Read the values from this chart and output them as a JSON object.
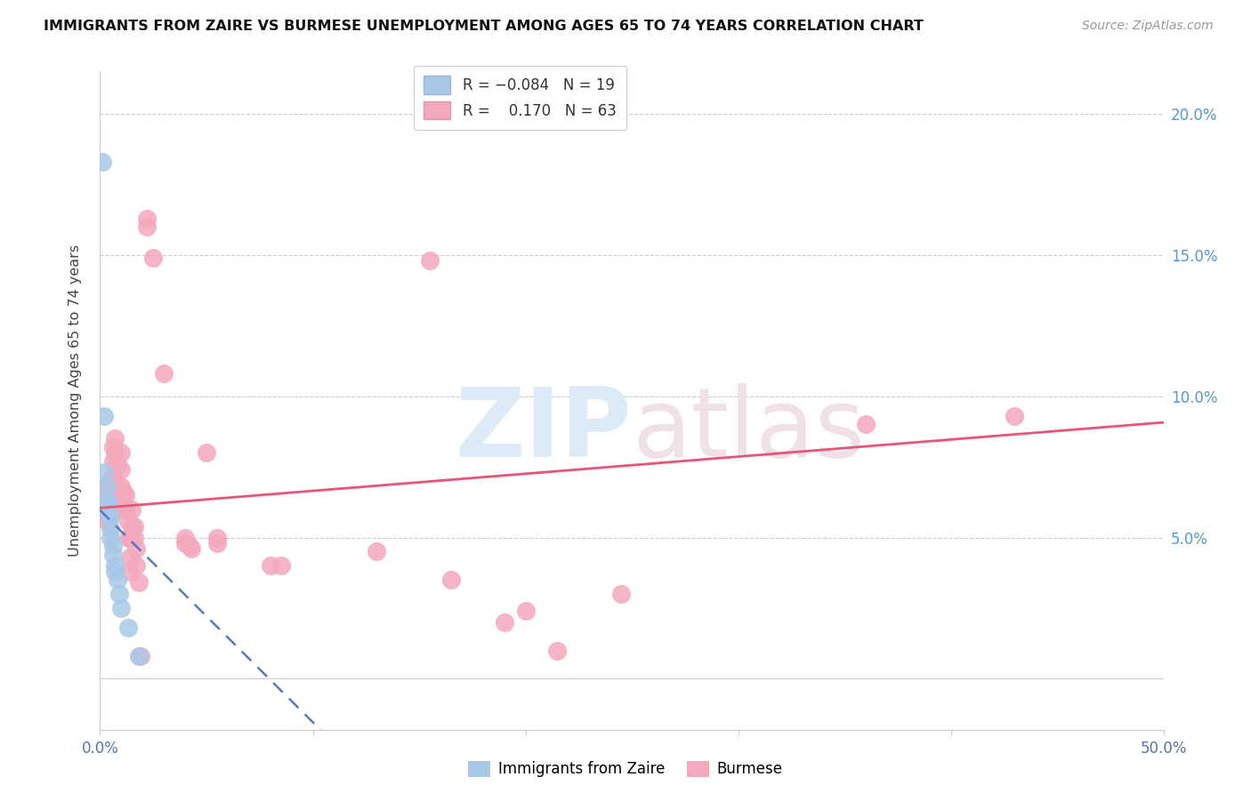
{
  "title": "IMMIGRANTS FROM ZAIRE VS BURMESE UNEMPLOYMENT AMONG AGES 65 TO 74 YEARS CORRELATION CHART",
  "source": "Source: ZipAtlas.com",
  "ylabel": "Unemployment Among Ages 65 to 74 years",
  "xlim": [
    0.0,
    0.5
  ],
  "ylim": [
    -0.018,
    0.215
  ],
  "zaire_color": "#a8c8e8",
  "burmese_color": "#f4a8bc",
  "zaire_line_color": "#5577cc",
  "burmese_line_color": "#e85575",
  "zaire_points": [
    [
      0.001,
      0.183
    ],
    [
      0.002,
      0.093
    ],
    [
      0.002,
      0.073
    ],
    [
      0.003,
      0.068
    ],
    [
      0.003,
      0.063
    ],
    [
      0.004,
      0.062
    ],
    [
      0.004,
      0.058
    ],
    [
      0.005,
      0.057
    ],
    [
      0.005,
      0.053
    ],
    [
      0.005,
      0.05
    ],
    [
      0.006,
      0.047
    ],
    [
      0.006,
      0.044
    ],
    [
      0.007,
      0.04
    ],
    [
      0.007,
      0.038
    ],
    [
      0.008,
      0.035
    ],
    [
      0.009,
      0.03
    ],
    [
      0.01,
      0.025
    ],
    [
      0.013,
      0.018
    ],
    [
      0.018,
      0.008
    ]
  ],
  "burmese_points": [
    [
      0.001,
      0.067
    ],
    [
      0.002,
      0.064
    ],
    [
      0.002,
      0.06
    ],
    [
      0.003,
      0.06
    ],
    [
      0.003,
      0.056
    ],
    [
      0.004,
      0.06
    ],
    [
      0.004,
      0.056
    ],
    [
      0.005,
      0.07
    ],
    [
      0.005,
      0.065
    ],
    [
      0.005,
      0.06
    ],
    [
      0.006,
      0.082
    ],
    [
      0.006,
      0.077
    ],
    [
      0.006,
      0.072
    ],
    [
      0.007,
      0.085
    ],
    [
      0.007,
      0.08
    ],
    [
      0.007,
      0.07
    ],
    [
      0.008,
      0.076
    ],
    [
      0.008,
      0.065
    ],
    [
      0.009,
      0.067
    ],
    [
      0.009,
      0.063
    ],
    [
      0.009,
      0.06
    ],
    [
      0.01,
      0.08
    ],
    [
      0.01,
      0.074
    ],
    [
      0.01,
      0.068
    ],
    [
      0.01,
      0.06
    ],
    [
      0.011,
      0.066
    ],
    [
      0.011,
      0.06
    ],
    [
      0.012,
      0.065
    ],
    [
      0.012,
      0.06
    ],
    [
      0.013,
      0.056
    ],
    [
      0.013,
      0.05
    ],
    [
      0.014,
      0.05
    ],
    [
      0.014,
      0.043
    ],
    [
      0.014,
      0.038
    ],
    [
      0.015,
      0.06
    ],
    [
      0.015,
      0.054
    ],
    [
      0.016,
      0.054
    ],
    [
      0.016,
      0.05
    ],
    [
      0.017,
      0.046
    ],
    [
      0.017,
      0.04
    ],
    [
      0.018,
      0.034
    ],
    [
      0.019,
      0.008
    ],
    [
      0.022,
      0.163
    ],
    [
      0.022,
      0.16
    ],
    [
      0.025,
      0.149
    ],
    [
      0.03,
      0.108
    ],
    [
      0.04,
      0.05
    ],
    [
      0.04,
      0.048
    ],
    [
      0.042,
      0.047
    ],
    [
      0.043,
      0.046
    ],
    [
      0.05,
      0.08
    ],
    [
      0.055,
      0.05
    ],
    [
      0.055,
      0.048
    ],
    [
      0.08,
      0.04
    ],
    [
      0.085,
      0.04
    ],
    [
      0.13,
      0.045
    ],
    [
      0.155,
      0.148
    ],
    [
      0.165,
      0.035
    ],
    [
      0.19,
      0.02
    ],
    [
      0.2,
      0.024
    ],
    [
      0.215,
      0.01
    ],
    [
      0.245,
      0.03
    ],
    [
      0.36,
      0.09
    ],
    [
      0.43,
      0.093
    ]
  ]
}
